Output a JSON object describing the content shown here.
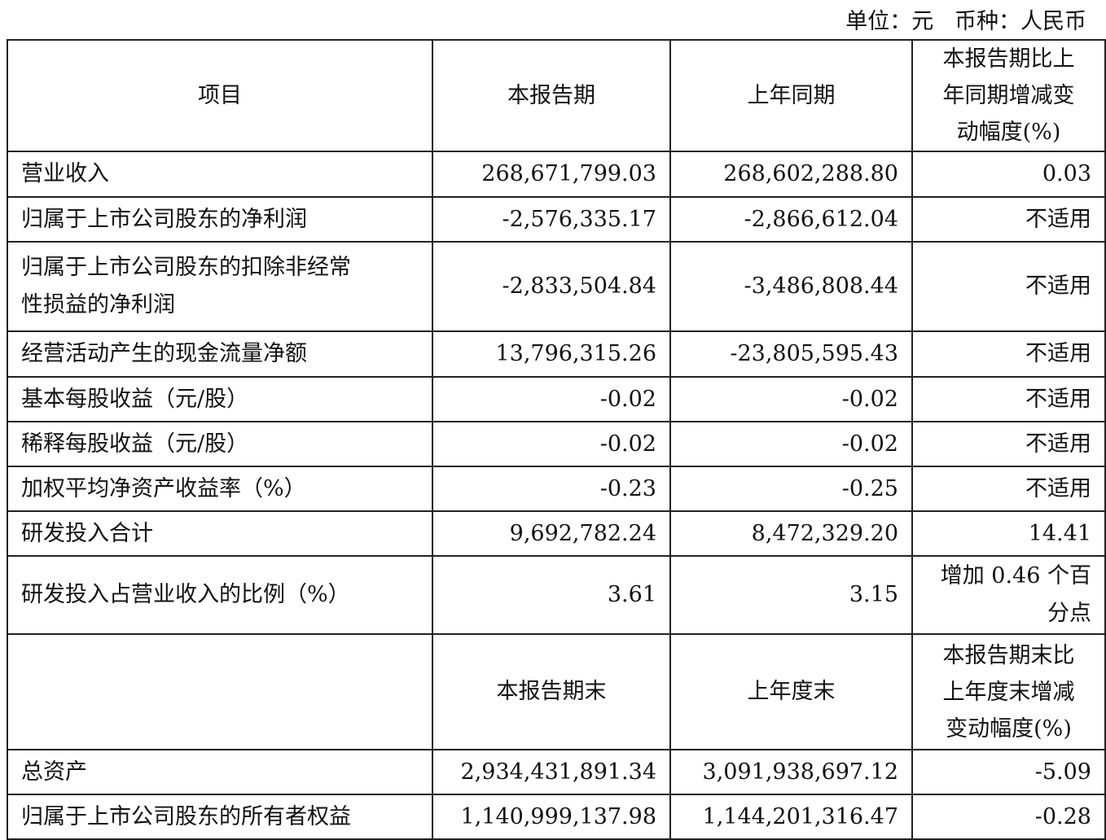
{
  "unit_line": "单位：元   币种：人民币",
  "table": {
    "header": {
      "item": [
        "项目"
      ],
      "current": [
        "本报告期"
      ],
      "prior": [
        "上年同期"
      ],
      "change": [
        "本报告期比上",
        "年同期增减变",
        "动幅度(%)"
      ]
    },
    "rows": [
      {
        "item": [
          "营业收入"
        ],
        "current": [
          "268,671,799.03"
        ],
        "prior": [
          "268,602,288.80"
        ],
        "change": [
          "0.03"
        ]
      },
      {
        "item": [
          "归属于上市公司股东的净利润"
        ],
        "current": [
          "-2,576,335.17"
        ],
        "prior": [
          "-2,866,612.04"
        ],
        "change": [
          "不适用"
        ]
      },
      {
        "item": [
          "归属于上市公司股东的扣除非经常",
          "性损益的净利润"
        ],
        "current": [
          "-2,833,504.84"
        ],
        "prior": [
          "-3,486,808.44"
        ],
        "change": [
          "不适用"
        ]
      },
      {
        "item": [
          "经营活动产生的现金流量净额"
        ],
        "current": [
          "13,796,315.26"
        ],
        "prior": [
          "-23,805,595.43"
        ],
        "change": [
          "不适用"
        ]
      },
      {
        "item": [
          "基本每股收益（元/股）"
        ],
        "current": [
          "-0.02"
        ],
        "prior": [
          "-0.02"
        ],
        "change": [
          "不适用"
        ]
      },
      {
        "item": [
          "稀释每股收益（元/股）"
        ],
        "current": [
          "-0.02"
        ],
        "prior": [
          "-0.02"
        ],
        "change": [
          "不适用"
        ]
      },
      {
        "item": [
          "加权平均净资产收益率（%）"
        ],
        "current": [
          "-0.23"
        ],
        "prior": [
          "-0.25"
        ],
        "change": [
          "不适用"
        ]
      },
      {
        "item": [
          "研发投入合计"
        ],
        "current": [
          "9,692,782.24"
        ],
        "prior": [
          "8,472,329.20"
        ],
        "change": [
          "14.41"
        ]
      },
      {
        "item": [
          "研发投入占营业收入的比例（%）"
        ],
        "current": [
          "3.61"
        ],
        "prior": [
          "3.15"
        ],
        "change": [
          "增加 0.46 个百",
          "分点"
        ]
      }
    ],
    "header2": {
      "item": [
        ""
      ],
      "current": [
        "本报告期末"
      ],
      "prior": [
        "上年度末"
      ],
      "change": [
        "本报告期末比",
        "上年度末增减",
        "变动幅度(%)"
      ]
    },
    "rows2": [
      {
        "item": [
          "总资产"
        ],
        "current": [
          "2,934,431,891.34"
        ],
        "prior": [
          "3,091,938,697.12"
        ],
        "change": [
          "-5.09"
        ]
      },
      {
        "item": [
          "归属于上市公司股东的所有者权益"
        ],
        "current": [
          "1,140,999,137.98"
        ],
        "prior": [
          "1,144,201,316.47"
        ],
        "change": [
          "-0.28"
        ]
      }
    ]
  }
}
